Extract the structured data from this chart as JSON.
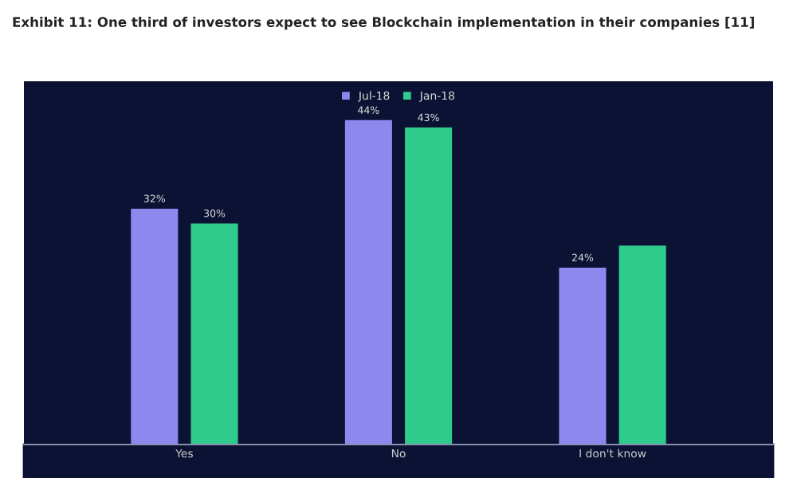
{
  "chart_data": {
    "type": "bar",
    "title": "Exhibit 11: One third of investors expect to see Blockchain implementation in their companies [11]",
    "categories": [
      "Yes",
      "No",
      "I don't know"
    ],
    "series": [
      {
        "name": "Jul-18",
        "color": "#8c88ee",
        "values": [
          32,
          44,
          24
        ],
        "value_labels": [
          "32%",
          "44%",
          "24%"
        ]
      },
      {
        "name": "Jan-18",
        "color": "#2fcb8c",
        "values": [
          30,
          43,
          27
        ],
        "value_labels": [
          "30%",
          "43%",
          null
        ]
      }
    ],
    "legend": "top",
    "grid": false
  }
}
